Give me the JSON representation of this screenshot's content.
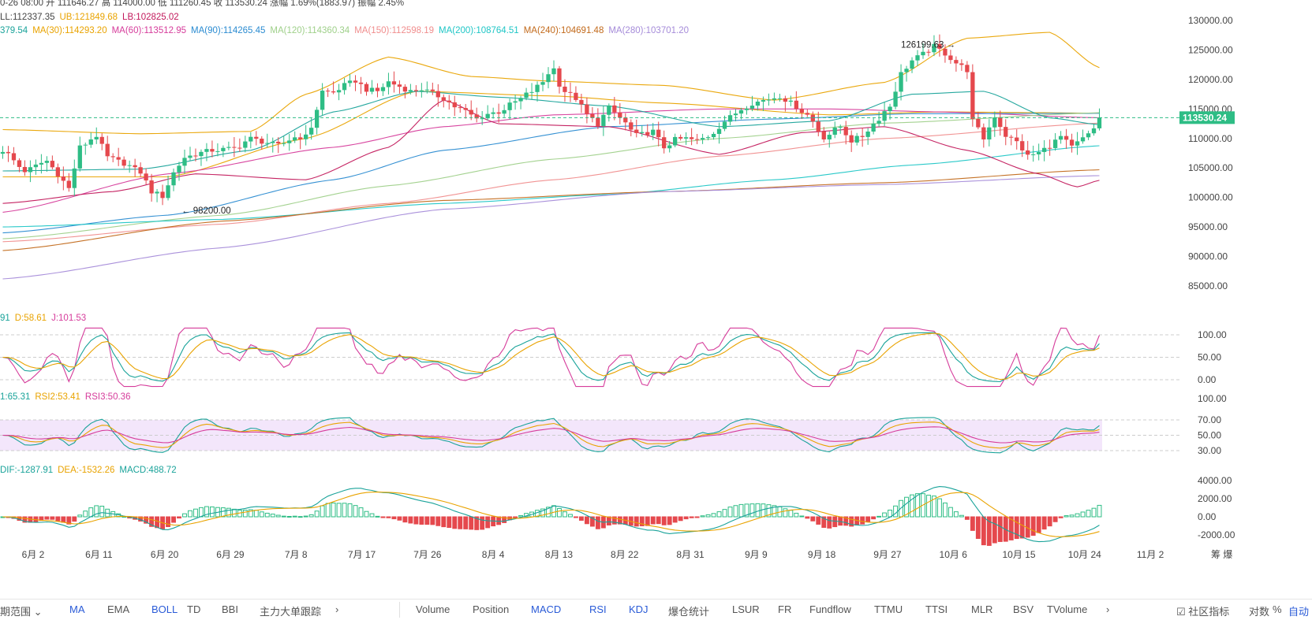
{
  "header": {
    "line1": "0-26 08:00  开 111646.27  高 114000.00  低 111260.45  收 113530.24  涨幅 1.69%(1883.97)  振幅 2.45%",
    "boll": [
      {
        "text": "LL:112337.35",
        "color": "#444444"
      },
      {
        "text": "UB:121849.68",
        "color": "#e9a300"
      },
      {
        "text": "LB:102825.02",
        "color": "#c2185b"
      }
    ],
    "ma": [
      {
        "text": "379.54",
        "color": "#1aa39a"
      },
      {
        "text": "MA(30):114293.20",
        "color": "#e9a300"
      },
      {
        "text": "MA(60):113512.95",
        "color": "#d63c9b"
      },
      {
        "text": "MA(90):114265.45",
        "color": "#2a8bd1"
      },
      {
        "text": "MA(120):114360.34",
        "color": "#9fd08a"
      },
      {
        "text": "MA(150):112598.19",
        "color": "#f08d8d"
      },
      {
        "text": "MA(200):108764.51",
        "color": "#1fc6c6"
      },
      {
        "text": "MA(240):104691.48",
        "color": "#c26a1b"
      },
      {
        "text": "MA(280):103701.20",
        "color": "#a58bd9"
      }
    ],
    "kdj": [
      {
        "text": "91",
        "color": "#1aa39a"
      },
      {
        "text": "D:58.61",
        "color": "#e9a300"
      },
      {
        "text": "J:101.53",
        "color": "#d63c9b"
      }
    ],
    "rsi": [
      {
        "text": "1:65.31",
        "color": "#1aa39a"
      },
      {
        "text": "RSI2:53.41",
        "color": "#e9a300"
      },
      {
        "text": "RSI3:50.36",
        "color": "#d63c9b"
      }
    ],
    "macd": [
      {
        "text": "DIF:-1287.91",
        "color": "#1aa39a"
      },
      {
        "text": "DEA:-1532.26",
        "color": "#e9a300"
      },
      {
        "text": "MACD:488.72",
        "color": "#1aa39a"
      }
    ]
  },
  "chart_data": {
    "type": "candlestick",
    "x_tick_labels": [
      "6月 2",
      "6月 11",
      "6月 20",
      "6月 29",
      "7月 8",
      "7月 17",
      "7月 26",
      "8月 4",
      "8月 13",
      "8月 22",
      "8月 31",
      "9月 9",
      "9月 18",
      "9月 27",
      "10月 6",
      "10月 15",
      "10月 24",
      "11月 2"
    ],
    "price_axis": {
      "ticks": [
        130000,
        125000,
        120000,
        115000,
        110000,
        105000,
        100000,
        95000,
        90000,
        85000
      ],
      "labels": [
        "130000.00",
        "125000.00",
        "120000.00",
        "115000.00",
        "110000.00",
        "105000.00",
        "100000.00",
        "95000.00",
        "90000.00",
        "85000.00"
      ],
      "current": 113530.24,
      "current_label": "113530.24"
    },
    "annotations": [
      {
        "label": "126199.63",
        "date": "10月 6",
        "value": 126199.63,
        "kind": "high"
      },
      {
        "label": "← 98200.00",
        "date": "6月 22",
        "value": 98200.0,
        "kind": "low"
      }
    ],
    "kdj_axis": {
      "ticks": [
        100,
        50,
        0
      ],
      "labels": [
        "100.00",
        "50.00",
        "0.00"
      ]
    },
    "rsi_axis": {
      "ticks": [
        100,
        70,
        50,
        30
      ],
      "labels": [
        "100.00",
        "70.00",
        "50.00",
        "30.00"
      ]
    },
    "macd_axis": {
      "ticks": [
        4000,
        2000,
        0,
        -2000
      ],
      "labels": [
        "4000.00",
        "2000.00",
        "0.00",
        "-2000.00"
      ]
    },
    "close_path": [
      [
        0,
        108000
      ],
      [
        4,
        104500
      ],
      [
        8,
        106200
      ],
      [
        10,
        104000
      ],
      [
        12,
        101500
      ],
      [
        14,
        108500
      ],
      [
        17,
        110500
      ],
      [
        19,
        106800
      ],
      [
        22,
        105800
      ],
      [
        25,
        104300
      ],
      [
        27,
        101000
      ],
      [
        29,
        100200
      ],
      [
        31,
        104200
      ],
      [
        33,
        106800
      ],
      [
        36,
        107600
      ],
      [
        38,
        108000
      ],
      [
        42,
        108300
      ],
      [
        45,
        110000
      ],
      [
        47,
        109500
      ],
      [
        50,
        108800
      ],
      [
        53,
        110200
      ],
      [
        55,
        110300
      ],
      [
        56,
        112000
      ],
      [
        58,
        118000
      ],
      [
        60,
        117800
      ],
      [
        62,
        119000
      ],
      [
        64,
        119800
      ],
      [
        66,
        118300
      ],
      [
        68,
        118000
      ],
      [
        70,
        119600
      ],
      [
        72,
        118800
      ],
      [
        74,
        118000
      ],
      [
        76,
        118400
      ],
      [
        78,
        117600
      ],
      [
        80,
        116800
      ],
      [
        82,
        115400
      ],
      [
        84,
        114600
      ],
      [
        86,
        113300
      ],
      [
        88,
        114200
      ],
      [
        90,
        114500
      ],
      [
        93,
        116200
      ],
      [
        96,
        118000
      ],
      [
        98,
        119600
      ],
      [
        99,
        121100
      ],
      [
        100,
        121800
      ],
      [
        101,
        119200
      ],
      [
        102,
        118000
      ],
      [
        104,
        116800
      ],
      [
        106,
        114000
      ],
      [
        108,
        112500
      ],
      [
        110,
        115200
      ],
      [
        112,
        113500
      ],
      [
        115,
        110500
      ],
      [
        118,
        111200
      ],
      [
        120,
        108500
      ],
      [
        122,
        109800
      ],
      [
        124,
        110000
      ],
      [
        126,
        109600
      ],
      [
        128,
        110400
      ],
      [
        132,
        113600
      ],
      [
        134,
        115000
      ],
      [
        136,
        116000
      ],
      [
        139,
        116700
      ],
      [
        141,
        117200
      ],
      [
        143,
        116000
      ],
      [
        146,
        114000
      ],
      [
        149,
        110200
      ],
      [
        152,
        112000
      ],
      [
        154,
        109600
      ],
      [
        156,
        110400
      ],
      [
        158,
        112500
      ],
      [
        161,
        115500
      ],
      [
        163,
        121000
      ],
      [
        165,
        123200
      ],
      [
        167,
        124300
      ],
      [
        169,
        125600
      ],
      [
        171,
        124400
      ],
      [
        173,
        122800
      ],
      [
        175,
        121600
      ],
      [
        176,
        113000
      ],
      [
        178,
        110000
      ],
      [
        180,
        113800
      ],
      [
        182,
        110500
      ],
      [
        184,
        109400
      ],
      [
        186,
        107000
      ],
      [
        188,
        107600
      ],
      [
        190,
        108800
      ],
      [
        192,
        110300
      ],
      [
        194,
        108500
      ],
      [
        196,
        110000
      ],
      [
        197,
        110600
      ],
      [
        198,
        111650
      ],
      [
        199,
        113530
      ]
    ],
    "series": [
      {
        "name": "MA(30)",
        "color": "#e9a300",
        "points": [
          [
            0,
            103500
          ],
          [
            30,
            103500
          ],
          [
            55,
            110000
          ],
          [
            75,
            118000
          ],
          [
            100,
            117200
          ],
          [
            120,
            116000
          ],
          [
            150,
            114000
          ],
          [
            170,
            114500
          ],
          [
            199,
            114293
          ]
        ]
      },
      {
        "name": "MA(60)",
        "color": "#d63c9b",
        "points": [
          [
            0,
            97500
          ],
          [
            30,
            104000
          ],
          [
            60,
            108500
          ],
          [
            80,
            112000
          ],
          [
            100,
            114000
          ],
          [
            130,
            115000
          ],
          [
            150,
            115000
          ],
          [
            170,
            114500
          ],
          [
            199,
            113513
          ]
        ]
      },
      {
        "name": "MA(90)",
        "color": "#2a8bd1",
        "points": [
          [
            0,
            94000
          ],
          [
            30,
            97000
          ],
          [
            60,
            103000
          ],
          [
            80,
            108000
          ],
          [
            110,
            112000
          ],
          [
            140,
            113300
          ],
          [
            165,
            114200
          ],
          [
            199,
            114265
          ]
        ]
      },
      {
        "name": "MA(120)",
        "color": "#9fd08a",
        "points": [
          [
            0,
            93000
          ],
          [
            40,
            97000
          ],
          [
            70,
            102000
          ],
          [
            100,
            106500
          ],
          [
            130,
            110000
          ],
          [
            160,
            112600
          ],
          [
            199,
            114360
          ]
        ]
      },
      {
        "name": "MA(150)",
        "color": "#f08d8d",
        "points": [
          [
            0,
            92500
          ],
          [
            40,
            95500
          ],
          [
            70,
            99000
          ],
          [
            100,
            103000
          ],
          [
            130,
            107000
          ],
          [
            160,
            110000
          ],
          [
            199,
            112598
          ]
        ]
      },
      {
        "name": "MA(200)",
        "color": "#1fc6c6",
        "points": [
          [
            0,
            95000
          ],
          [
            40,
            96300
          ],
          [
            80,
            99000
          ],
          [
            110,
            100500
          ],
          [
            140,
            103000
          ],
          [
            165,
            105500
          ],
          [
            199,
            108765
          ]
        ]
      },
      {
        "name": "MA(240)",
        "color": "#c26a1b",
        "points": [
          [
            0,
            91000
          ],
          [
            40,
            96000
          ],
          [
            80,
            99500
          ],
          [
            120,
            101000
          ],
          [
            160,
            102500
          ],
          [
            199,
            104691
          ]
        ]
      },
      {
        "name": "MA(280)",
        "color": "#a58bd9",
        "points": [
          [
            0,
            86200
          ],
          [
            40,
            91500
          ],
          [
            80,
            98000
          ],
          [
            120,
            101000
          ],
          [
            160,
            102200
          ],
          [
            199,
            103701
          ]
        ]
      },
      {
        "name": "UB",
        "color": "#e9a300",
        "points": [
          [
            0,
            111500
          ],
          [
            25,
            110800
          ],
          [
            45,
            111200
          ],
          [
            55,
            117500
          ],
          [
            70,
            123800
          ],
          [
            85,
            120500
          ],
          [
            100,
            119700
          ],
          [
            120,
            119000
          ],
          [
            140,
            116500
          ],
          [
            160,
            119500
          ],
          [
            175,
            127000
          ],
          [
            190,
            128000
          ],
          [
            199,
            122000
          ]
        ]
      },
      {
        "name": "LB",
        "color": "#c2185b",
        "points": [
          [
            0,
            99000
          ],
          [
            20,
            101000
          ],
          [
            35,
            104000
          ],
          [
            55,
            103000
          ],
          [
            70,
            108500
          ],
          [
            80,
            116500
          ],
          [
            90,
            112500
          ],
          [
            110,
            112000
          ],
          [
            130,
            107300
          ],
          [
            145,
            111000
          ],
          [
            160,
            112000
          ],
          [
            175,
            108000
          ],
          [
            188,
            104000
          ],
          [
            195,
            101800
          ],
          [
            199,
            102900
          ]
        ]
      },
      {
        "name": "BOLL-MID",
        "color": "#1aa39a",
        "points": [
          [
            0,
            104500
          ],
          [
            25,
            104800
          ],
          [
            45,
            108000
          ],
          [
            60,
            114500
          ],
          [
            75,
            118000
          ],
          [
            90,
            117000
          ],
          [
            110,
            115500
          ],
          [
            130,
            112000
          ],
          [
            150,
            113000
          ],
          [
            165,
            117500
          ],
          [
            178,
            118000
          ],
          [
            190,
            113500
          ],
          [
            199,
            112337
          ]
        ]
      }
    ]
  },
  "bottom": {
    "left": [
      {
        "label": "期范围 ⌄",
        "blue": false
      },
      {
        "label": "MA",
        "blue": true
      },
      {
        "label": "EMA",
        "blue": false
      },
      {
        "label": "BOLL",
        "blue": true
      },
      {
        "label": "TD",
        "blue": false
      },
      {
        "label": "BBI",
        "blue": false
      },
      {
        "label": "主力大单跟踪",
        "blue": false
      },
      {
        "label": "›",
        "blue": false
      }
    ],
    "right": [
      {
        "label": "Volume",
        "blue": false
      },
      {
        "label": "Position",
        "blue": false
      },
      {
        "label": "MACD",
        "blue": true
      },
      {
        "label": "RSI",
        "blue": true
      },
      {
        "label": "KDJ",
        "blue": true
      },
      {
        "label": "爆仓统计",
        "blue": false
      },
      {
        "label": "LSUR",
        "blue": false
      },
      {
        "label": "FR",
        "blue": false
      },
      {
        "label": "Fundflow",
        "blue": false
      },
      {
        "label": "TTMU",
        "blue": false
      },
      {
        "label": "TTSI",
        "blue": false
      },
      {
        "label": "MLR",
        "blue": false
      },
      {
        "label": "BSV",
        "blue": false
      },
      {
        "label": "TVolume",
        "blue": false
      },
      {
        "label": "›",
        "blue": false
      }
    ],
    "tools": [
      {
        "label": "☑ 社区指标",
        "blue": false
      },
      {
        "label": "对数",
        "blue": false
      },
      {
        "label": "%",
        "blue": false
      },
      {
        "label": "自动",
        "blue": true
      }
    ],
    "corner": "筹  爆"
  }
}
